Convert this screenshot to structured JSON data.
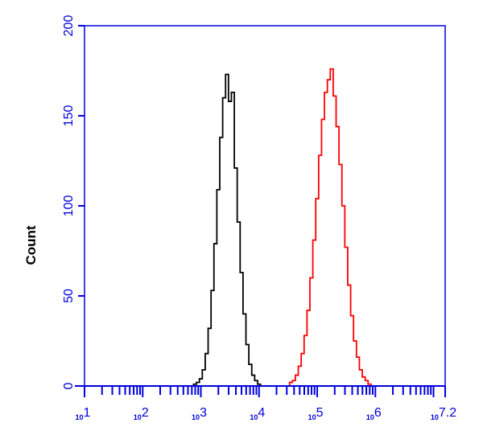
{
  "chart_data": {
    "type": "line",
    "title": "",
    "xlabel": "",
    "ylabel": "Count",
    "x_scale": "log10",
    "xlim_exponent": [
      1,
      7.2
    ],
    "ylim": [
      0,
      200
    ],
    "grid": false,
    "legend": "none",
    "axis_color": "#0000e0",
    "x_tick_labels": [
      {
        "exp": 1,
        "base": "10",
        "power": "1"
      },
      {
        "exp": 2,
        "base": "10",
        "power": "2"
      },
      {
        "exp": 3,
        "base": "10",
        "power": "3"
      },
      {
        "exp": 4,
        "base": "10",
        "power": "4"
      },
      {
        "exp": 5,
        "base": "10",
        "power": "5"
      },
      {
        "exp": 6,
        "base": "10",
        "power": "6"
      },
      {
        "exp": 7.2,
        "base": "10",
        "power": "7.2"
      }
    ],
    "y_ticks": [
      0,
      50,
      100,
      150,
      200
    ],
    "y_tick_labels": [
      "0",
      "50",
      "100",
      "150",
      "200"
    ],
    "series": [
      {
        "color": "#000000",
        "x_exponent": [
          2.9,
          2.95,
          3.0,
          3.05,
          3.1,
          3.15,
          3.2,
          3.25,
          3.3,
          3.35,
          3.4,
          3.45,
          3.5,
          3.55,
          3.6,
          3.65,
          3.7,
          3.75,
          3.8,
          3.85,
          3.9,
          3.95,
          4.0,
          4.05
        ],
        "values": [
          1,
          2,
          4,
          9,
          18,
          32,
          53,
          79,
          109,
          138,
          160,
          173,
          158,
          163,
          121,
          91,
          63,
          40,
          23,
          12,
          6,
          3,
          1,
          0
        ]
      },
      {
        "color": "#ff0000",
        "x_exponent": [
          4.55,
          4.6,
          4.65,
          4.7,
          4.75,
          4.8,
          4.85,
          4.9,
          4.95,
          5.0,
          5.05,
          5.1,
          5.15,
          5.2,
          5.25,
          5.3,
          5.35,
          5.4,
          5.45,
          5.5,
          5.55,
          5.6,
          5.65,
          5.7,
          5.75,
          5.8,
          5.85,
          5.9,
          5.95
        ],
        "values": [
          2,
          3,
          6,
          11,
          18,
          28,
          42,
          60,
          81,
          104,
          128,
          148,
          163,
          170,
          176,
          161,
          144,
          123,
          100,
          77,
          56,
          39,
          25,
          16,
          9,
          5,
          3,
          1,
          0
        ]
      }
    ]
  }
}
